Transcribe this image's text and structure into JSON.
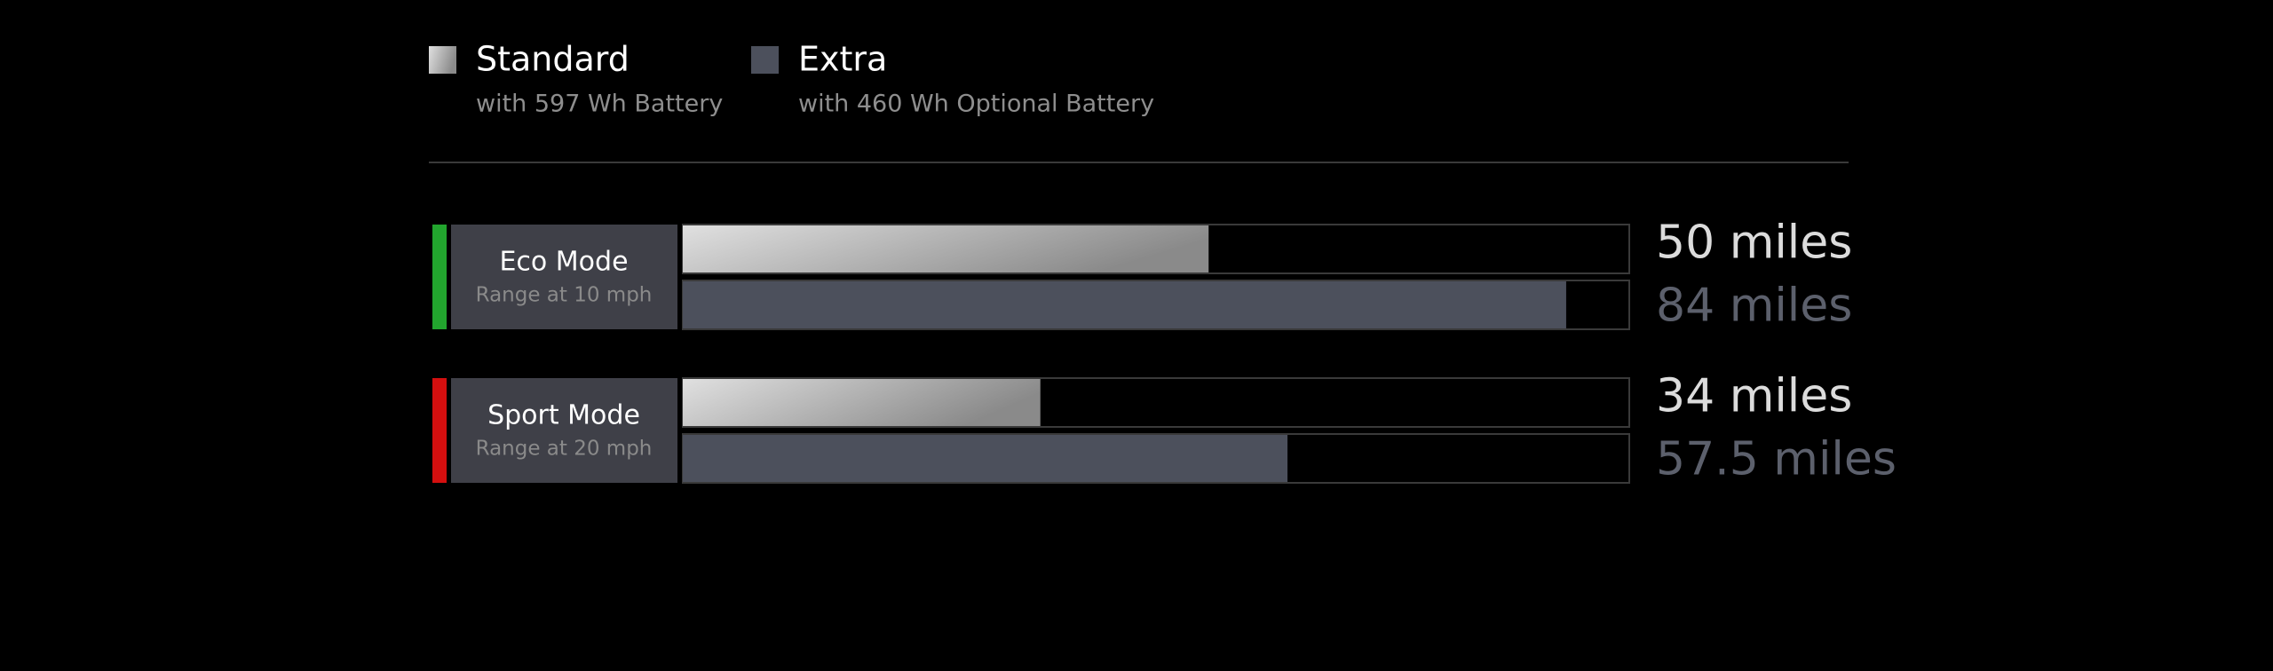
{
  "chart_data": {
    "type": "bar",
    "orientation": "horizontal",
    "categories": [
      "Eco Mode",
      "Sport Mode"
    ],
    "category_subtitles": [
      "Range at 10 mph",
      "Range at 20 mph"
    ],
    "category_colors": [
      "#22a52e",
      "#d40f0f"
    ],
    "series": [
      {
        "name": "Standard",
        "description": "with 597 Wh Battery",
        "color": "#d9d9d9",
        "values": [
          50,
          34
        ],
        "value_labels": [
          "50 miles",
          "34 miles"
        ]
      },
      {
        "name": "Extra",
        "description": "with 460 Wh Optional Battery",
        "color": "#4c505c",
        "values": [
          84,
          57.5
        ],
        "value_labels": [
          "84 miles",
          "57.5 miles"
        ]
      }
    ],
    "xlim": [
      0,
      90
    ]
  }
}
